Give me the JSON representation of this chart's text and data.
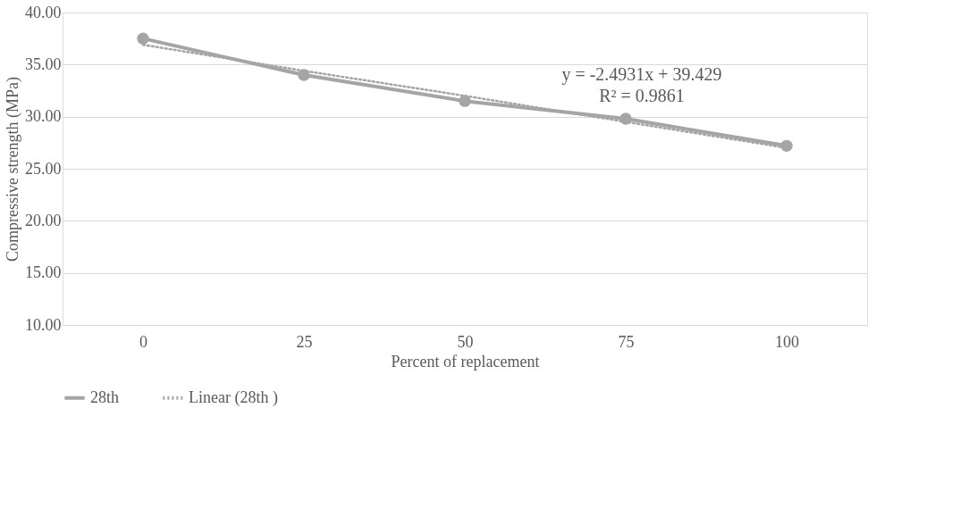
{
  "chart_data": {
    "type": "line",
    "xlabel": "Percent of replacement",
    "ylabel": "Compressive strength (MPa)",
    "categories": [
      "0",
      "25",
      "50",
      "75",
      "100"
    ],
    "series": [
      {
        "name": "28th",
        "color": "#a5a5a5",
        "values": [
          37.5,
          34.0,
          31.5,
          29.8,
          27.2
        ],
        "marker": "circle",
        "line_style": "solid"
      },
      {
        "name": "Linear (28th )",
        "color": "#a5a5a5",
        "values": [
          36.9,
          34.4,
          32.0,
          29.5,
          27.0
        ],
        "marker": "none",
        "line_style": "dotted"
      }
    ],
    "ylim": [
      10,
      40
    ],
    "yticks": [
      {
        "value": 10,
        "label": "10.00"
      },
      {
        "value": 15,
        "label": "15.00"
      },
      {
        "value": 20,
        "label": "20.00"
      },
      {
        "value": 25,
        "label": "25.00"
      },
      {
        "value": 30,
        "label": "30.00"
      },
      {
        "value": 35,
        "label": "35.00"
      },
      {
        "value": 40,
        "label": "40.00"
      }
    ],
    "grid": "y",
    "legend": "bottom",
    "annotations": [
      "y = -2.4931x + 39.429",
      "R² = 0.9861"
    ]
  }
}
